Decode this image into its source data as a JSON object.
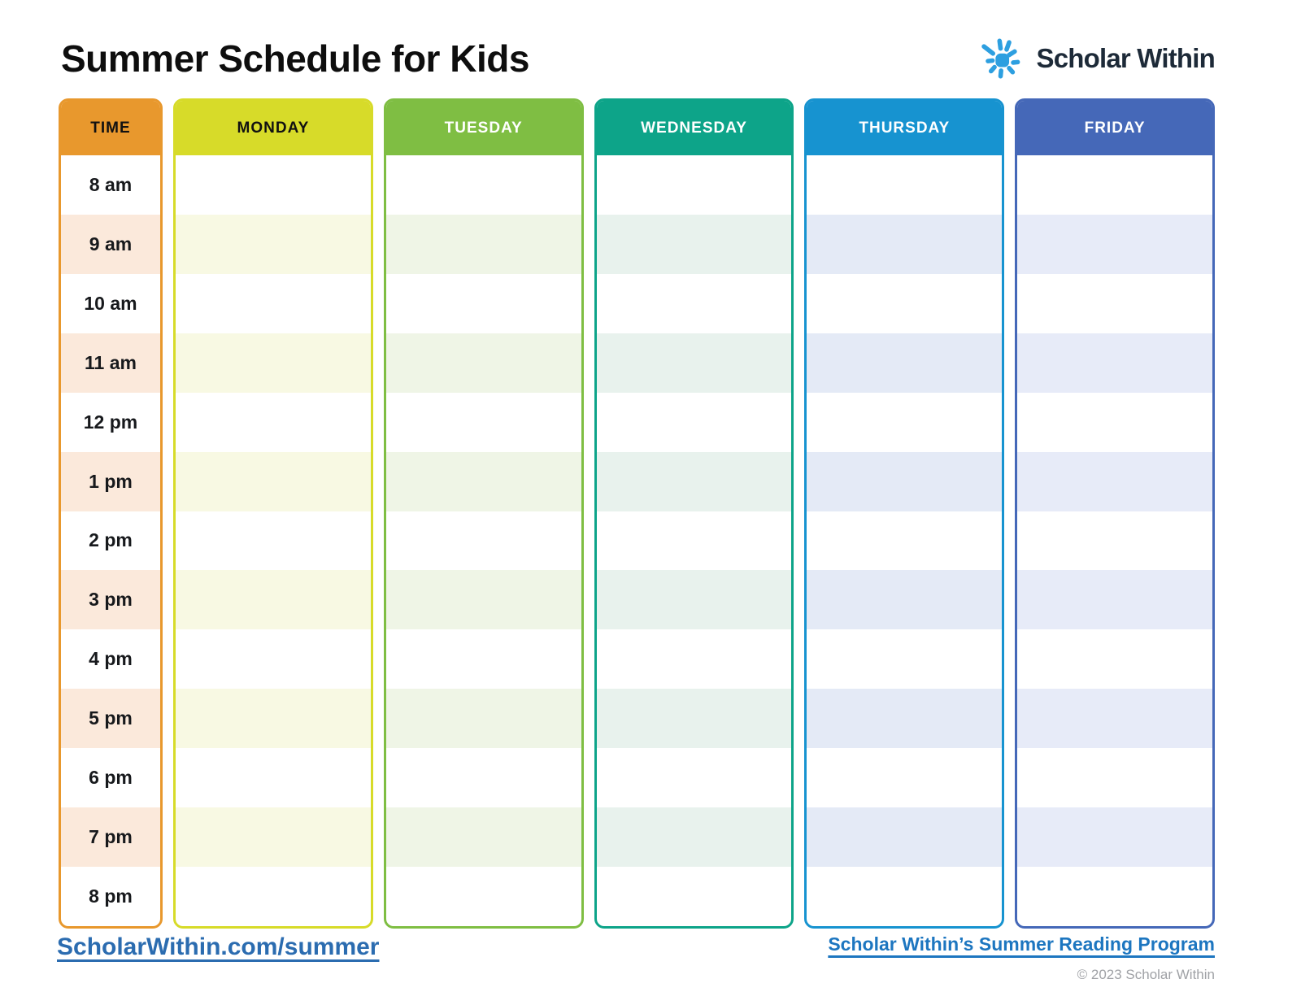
{
  "page": {
    "title": "Summer Schedule for Kids"
  },
  "logo": {
    "brand": "Scholar Within",
    "icon": "sun-icon",
    "icon_color": "#2d9fe0",
    "text_color": "#1d2a38"
  },
  "schedule": {
    "times": [
      "8 am",
      "9 am",
      "10 am",
      "11 am",
      "12 pm",
      "1 pm",
      "2 pm",
      "3 pm",
      "4 pm",
      "5 pm",
      "6 pm",
      "7 pm",
      "8 pm"
    ],
    "columns": [
      {
        "id": "time",
        "label": "TIME",
        "type": "time",
        "header_bg": "#e8982d",
        "header_text": "#111111",
        "border": "#e8982d",
        "stripe": "#fbe9db"
      },
      {
        "id": "monday",
        "label": "MONDAY",
        "type": "day",
        "header_bg": "#d7db29",
        "header_text": "#111111",
        "border": "#d7db29",
        "stripe": "#f8f9e3"
      },
      {
        "id": "tuesday",
        "label": "TUESDAY",
        "type": "day",
        "header_bg": "#7fbe43",
        "header_text": "#ffffff",
        "border": "#7fbe43",
        "stripe": "#eff5e6"
      },
      {
        "id": "wednesday",
        "label": "WEDNESDAY",
        "type": "day",
        "header_bg": "#0da489",
        "header_text": "#ffffff",
        "border": "#0da489",
        "stripe": "#e8f2ed"
      },
      {
        "id": "thursday",
        "label": "THURSDAY",
        "type": "day",
        "header_bg": "#1793d0",
        "header_text": "#ffffff",
        "border": "#1793d0",
        "stripe": "#e4eaf6"
      },
      {
        "id": "friday",
        "label": "FRIDAY",
        "type": "day",
        "header_bg": "#4568b8",
        "header_text": "#ffffff",
        "border": "#4568b8",
        "stripe": "#e7ebf8"
      }
    ]
  },
  "footer": {
    "left_link": "ScholarWithin.com/summer",
    "right_link": "Scholar Within’s Summer Reading Program",
    "copyright": "© 2023 Scholar Within",
    "left_link_color": "#2b6cb0",
    "right_link_color": "#1d76c0",
    "copyright_color": "#a0a2a6"
  }
}
